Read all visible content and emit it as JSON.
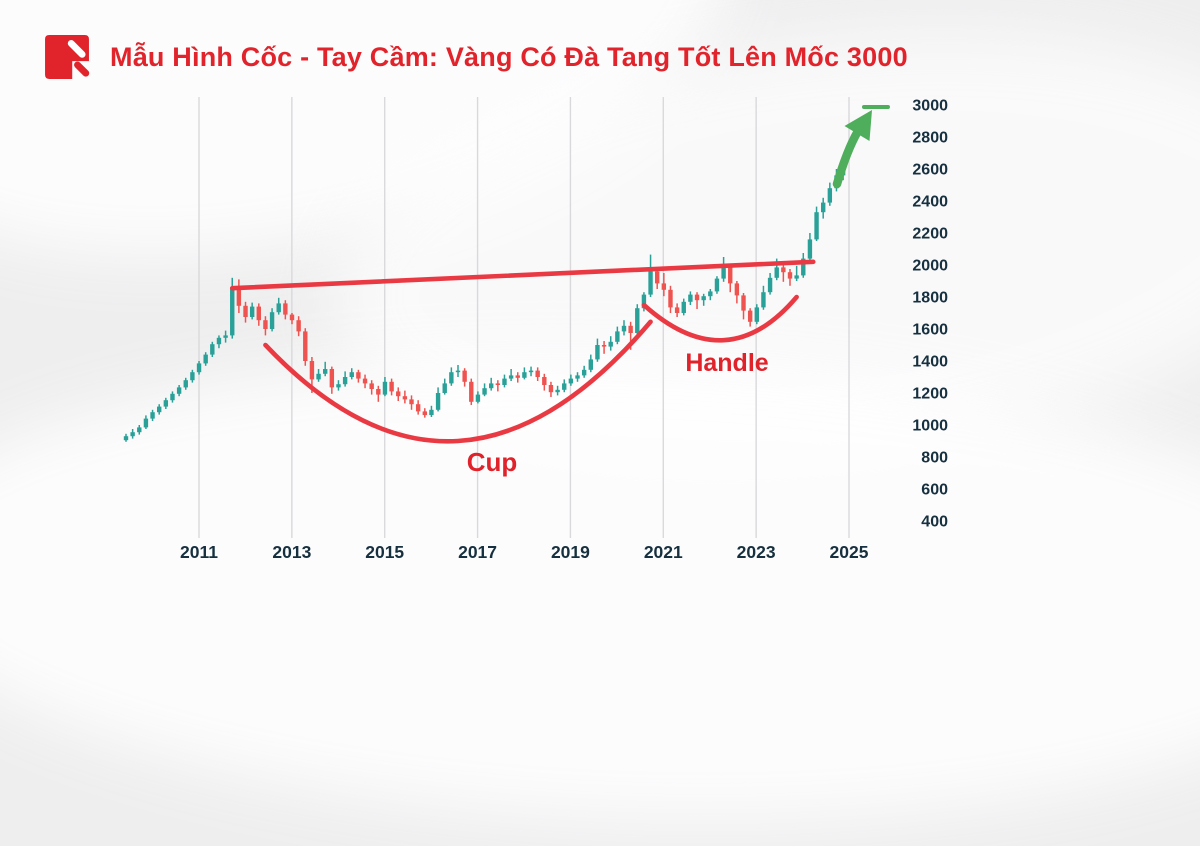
{
  "header": {
    "title": "Mẫu Hình Cốc - Tay Cầm: Vàng Có Đà Tang Tốt Lên Mốc 3000",
    "brand_color": "#e1232b"
  },
  "chart_data": {
    "type": "candlestick",
    "title": "Mẫu Hình Cốc - Tay Cầm: Vàng Có Đà Tang Tốt Lên Mốc 3000",
    "x_ticks": [
      "2011",
      "2013",
      "2015",
      "2017",
      "2019",
      "2021",
      "2023",
      "2025"
    ],
    "y_ticks": [
      400,
      600,
      800,
      1000,
      1200,
      1400,
      1600,
      1800,
      2000,
      2200,
      2400,
      2600,
      2800,
      3000
    ],
    "ylim": [
      280,
      3090
    ],
    "x_range_years": [
      2009.5,
      2025.5
    ],
    "grid": "vertical-only",
    "legend": "none",
    "candles_note": "each candle ~1.7 months, [open,high,low,close], gold price approx USD",
    "candles": [
      [
        905,
        945,
        895,
        930
      ],
      [
        930,
        975,
        915,
        955
      ],
      [
        955,
        1000,
        940,
        985
      ],
      [
        985,
        1060,
        975,
        1040
      ],
      [
        1040,
        1095,
        1025,
        1080
      ],
      [
        1080,
        1130,
        1065,
        1115
      ],
      [
        1115,
        1170,
        1100,
        1155
      ],
      [
        1155,
        1210,
        1140,
        1195
      ],
      [
        1195,
        1250,
        1180,
        1235
      ],
      [
        1235,
        1295,
        1220,
        1280
      ],
      [
        1280,
        1345,
        1265,
        1330
      ],
      [
        1330,
        1400,
        1315,
        1385
      ],
      [
        1385,
        1455,
        1370,
        1440
      ],
      [
        1440,
        1520,
        1425,
        1505
      ],
      [
        1505,
        1560,
        1480,
        1545
      ],
      [
        1545,
        1590,
        1515,
        1560
      ],
      [
        1560,
        1920,
        1540,
        1860
      ],
      [
        1860,
        1910,
        1700,
        1745
      ],
      [
        1745,
        1770,
        1640,
        1675
      ],
      [
        1675,
        1765,
        1660,
        1740
      ],
      [
        1740,
        1760,
        1620,
        1655
      ],
      [
        1655,
        1680,
        1560,
        1600
      ],
      [
        1600,
        1730,
        1585,
        1705
      ],
      [
        1705,
        1795,
        1690,
        1760
      ],
      [
        1760,
        1780,
        1660,
        1690
      ],
      [
        1690,
        1700,
        1630,
        1655
      ],
      [
        1655,
        1680,
        1555,
        1585
      ],
      [
        1585,
        1605,
        1370,
        1400
      ],
      [
        1400,
        1425,
        1200,
        1285
      ],
      [
        1285,
        1350,
        1270,
        1320
      ],
      [
        1320,
        1395,
        1305,
        1350
      ],
      [
        1350,
        1365,
        1195,
        1235
      ],
      [
        1235,
        1280,
        1215,
        1255
      ],
      [
        1255,
        1335,
        1240,
        1300
      ],
      [
        1300,
        1355,
        1285,
        1330
      ],
      [
        1330,
        1345,
        1265,
        1290
      ],
      [
        1290,
        1315,
        1230,
        1260
      ],
      [
        1260,
        1280,
        1190,
        1225
      ],
      [
        1225,
        1245,
        1145,
        1190
      ],
      [
        1190,
        1300,
        1180,
        1270
      ],
      [
        1270,
        1290,
        1185,
        1210
      ],
      [
        1210,
        1235,
        1150,
        1180
      ],
      [
        1180,
        1215,
        1135,
        1160
      ],
      [
        1160,
        1185,
        1095,
        1130
      ],
      [
        1130,
        1155,
        1065,
        1085
      ],
      [
        1085,
        1105,
        1046,
        1062
      ],
      [
        1062,
        1120,
        1050,
        1095
      ],
      [
        1095,
        1235,
        1085,
        1200
      ],
      [
        1200,
        1290,
        1190,
        1260
      ],
      [
        1260,
        1360,
        1245,
        1330
      ],
      [
        1330,
        1375,
        1300,
        1340
      ],
      [
        1340,
        1355,
        1240,
        1270
      ],
      [
        1270,
        1290,
        1125,
        1145
      ],
      [
        1145,
        1210,
        1135,
        1190
      ],
      [
        1190,
        1260,
        1180,
        1230
      ],
      [
        1230,
        1295,
        1215,
        1260
      ],
      [
        1260,
        1280,
        1210,
        1250
      ],
      [
        1250,
        1315,
        1235,
        1290
      ],
      [
        1290,
        1350,
        1275,
        1310
      ],
      [
        1310,
        1330,
        1265,
        1295
      ],
      [
        1295,
        1360,
        1285,
        1330
      ],
      [
        1330,
        1365,
        1305,
        1340
      ],
      [
        1340,
        1360,
        1275,
        1300
      ],
      [
        1300,
        1320,
        1215,
        1250
      ],
      [
        1250,
        1270,
        1175,
        1205
      ],
      [
        1205,
        1245,
        1185,
        1220
      ],
      [
        1220,
        1285,
        1205,
        1260
      ],
      [
        1260,
        1315,
        1245,
        1290
      ],
      [
        1290,
        1330,
        1270,
        1310
      ],
      [
        1310,
        1370,
        1295,
        1345
      ],
      [
        1345,
        1440,
        1330,
        1410
      ],
      [
        1410,
        1540,
        1395,
        1500
      ],
      [
        1500,
        1525,
        1445,
        1490
      ],
      [
        1490,
        1555,
        1465,
        1520
      ],
      [
        1520,
        1615,
        1505,
        1585
      ],
      [
        1585,
        1655,
        1560,
        1620
      ],
      [
        1620,
        1645,
        1470,
        1575
      ],
      [
        1575,
        1755,
        1560,
        1730
      ],
      [
        1730,
        1830,
        1710,
        1815
      ],
      [
        1815,
        2065,
        1800,
        1960
      ],
      [
        1960,
        1985,
        1850,
        1885
      ],
      [
        1885,
        1950,
        1805,
        1845
      ],
      [
        1845,
        1870,
        1700,
        1735
      ],
      [
        1735,
        1760,
        1675,
        1700
      ],
      [
        1700,
        1790,
        1685,
        1770
      ],
      [
        1770,
        1835,
        1750,
        1815
      ],
      [
        1815,
        1830,
        1725,
        1780
      ],
      [
        1780,
        1820,
        1745,
        1805
      ],
      [
        1805,
        1850,
        1780,
        1835
      ],
      [
        1835,
        1930,
        1820,
        1915
      ],
      [
        1915,
        2050,
        1895,
        1985
      ],
      [
        1985,
        2000,
        1830,
        1885
      ],
      [
        1885,
        1900,
        1760,
        1810
      ],
      [
        1810,
        1825,
        1660,
        1715
      ],
      [
        1715,
        1730,
        1615,
        1645
      ],
      [
        1645,
        1755,
        1630,
        1735
      ],
      [
        1735,
        1870,
        1720,
        1830
      ],
      [
        1830,
        1950,
        1815,
        1920
      ],
      [
        1920,
        2040,
        1905,
        1985
      ],
      [
        1985,
        2005,
        1895,
        1955
      ],
      [
        1955,
        1975,
        1870,
        1915
      ],
      [
        1915,
        1995,
        1900,
        1935
      ],
      [
        1935,
        2075,
        1920,
        2040
      ],
      [
        2040,
        2200,
        2025,
        2160
      ],
      [
        2160,
        2365,
        2150,
        2330
      ],
      [
        2330,
        2420,
        2290,
        2390
      ],
      [
        2390,
        2515,
        2370,
        2480
      ],
      [
        2480,
        2600,
        2460,
        2560
      ],
      [
        2560,
        2650,
        2530,
        2600
      ]
    ],
    "annotations": {
      "trendline": {
        "name": "resistance line from 2011 peak to 2024 breakout",
        "from": [
          16,
          1855
        ],
        "to": [
          103.5,
          2020
        ]
      },
      "cup": {
        "label": "Cup",
        "from": [
          21,
          1500
        ],
        "mid": [
          50,
          900
        ],
        "to": [
          79,
          1645
        ]
      },
      "handle": {
        "label": "Handle",
        "from": [
          78,
          1750
        ],
        "mid": [
          90,
          1530
        ],
        "to": [
          101,
          1800
        ]
      },
      "breakout_arrow": {
        "target_price": 3000
      }
    },
    "colors": {
      "up": "#2aa198",
      "down": "#ef5350",
      "annotation_red": "#e93a44",
      "label_red": "#e0222a",
      "arrow_green": "#4fae5c",
      "grid": "#d9d9dc",
      "axis_text": "#16303f"
    }
  }
}
